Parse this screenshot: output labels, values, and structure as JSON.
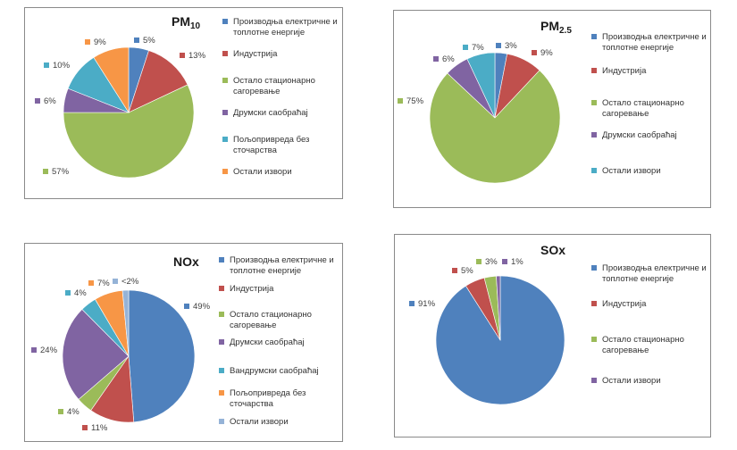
{
  "colors": {
    "blue": "#4f81bd",
    "red": "#c0504d",
    "green": "#9bbb59",
    "purple": "#8064a2",
    "teal": "#4bacc6",
    "orange": "#f79646",
    "lightblue": "#95b3d7"
  },
  "chart_data": [
    {
      "type": "pie",
      "title_main": "PM",
      "title_sub": "10",
      "categories": [
        "Производња електричне и топлотне енергије",
        "Индустрија",
        "Остало стационарно сагоревање",
        "Друмски саобраћај",
        "Пољопривреда без сточарства",
        "Остали извори"
      ],
      "values": [
        5,
        13,
        57,
        6,
        10,
        9
      ],
      "labels": [
        "5%",
        "13%",
        "57%",
        "6%",
        "10%",
        "9%"
      ],
      "colors": [
        "#4f81bd",
        "#c0504d",
        "#9bbb59",
        "#8064a2",
        "#4bacc6",
        "#f79646"
      ],
      "legend_position": "right"
    },
    {
      "type": "pie",
      "title_main": "PM",
      "title_sub": "2.5",
      "categories": [
        "Производња електричне и топлотне енергије",
        "Индустрија",
        "Остало стационарно сагоревање",
        "Друмски саобраћај",
        "Остали извори"
      ],
      "values": [
        3,
        9,
        75,
        6,
        7
      ],
      "labels": [
        "3%",
        "9%",
        "75%",
        "6%",
        "7%"
      ],
      "colors": [
        "#4f81bd",
        "#c0504d",
        "#9bbb59",
        "#8064a2",
        "#4bacc6"
      ],
      "legend_position": "right"
    },
    {
      "type": "pie",
      "title_main": "NOx",
      "title_sub": "",
      "categories": [
        "Производња електричне и топлотне енергије",
        "Индустрија",
        "Остало стационарно сагоревање",
        "Друмски саобраћај",
        "Вандрумски саобраћај",
        "Пољопривреда без сточарства",
        "Остали извори"
      ],
      "values": [
        49,
        11,
        4,
        24,
        4,
        7,
        1.5
      ],
      "labels": [
        "49%",
        "11%",
        "4%",
        "24%",
        "4%",
        "7%",
        "<2%"
      ],
      "colors": [
        "#4f81bd",
        "#c0504d",
        "#9bbb59",
        "#8064a2",
        "#4bacc6",
        "#f79646",
        "#95b3d7"
      ],
      "legend_position": "right"
    },
    {
      "type": "pie",
      "title_main": "SOx",
      "title_sub": "",
      "categories": [
        "Производња електричне и топлотне енергије",
        "Индустрија",
        "Остало стационарно сагоревање",
        "Остали извори"
      ],
      "values": [
        91,
        5,
        3,
        1
      ],
      "labels": [
        "91%",
        "5%",
        "3%",
        "1%"
      ],
      "colors": [
        "#4f81bd",
        "#c0504d",
        "#9bbb59",
        "#8064a2"
      ],
      "legend_position": "right"
    }
  ]
}
